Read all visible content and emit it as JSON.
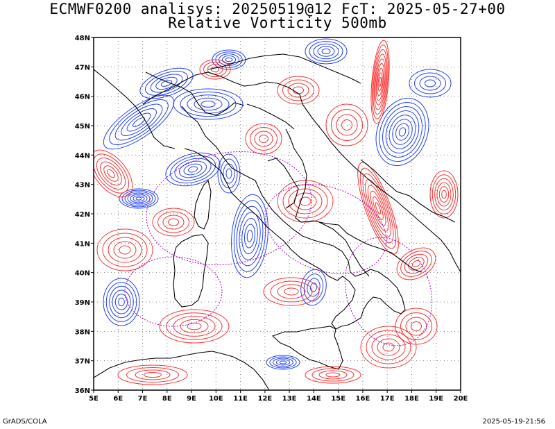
{
  "header": {
    "line1": "ECMWF0200 analisys: 20250519@12 FcT: 2025-05-27+00",
    "line2": "Relative Vorticity 500mb"
  },
  "map": {
    "lon_range": [
      5,
      20
    ],
    "lat_range": [
      36,
      48
    ],
    "lon_ticks": [
      "5E",
      "6E",
      "7E",
      "8E",
      "9E",
      "10E",
      "11E",
      "12E",
      "13E",
      "14E",
      "15E",
      "16E",
      "17E",
      "18E",
      "19E",
      "20E"
    ],
    "lat_ticks": [
      "36N",
      "37N",
      "38N",
      "39N",
      "40N",
      "41N",
      "42N",
      "43N",
      "44N",
      "45N",
      "46N",
      "47N",
      "48N"
    ],
    "grid": "dotted",
    "colors": {
      "positive_vorticity": "#ff3030",
      "negative_vorticity": "#2040ff",
      "zero_contour": "#b000c0",
      "coast_borders": "#000000",
      "grid": "#808080"
    }
  },
  "footer": {
    "left": "GrADS/COLA",
    "right": "2025-05-19-21:56"
  }
}
